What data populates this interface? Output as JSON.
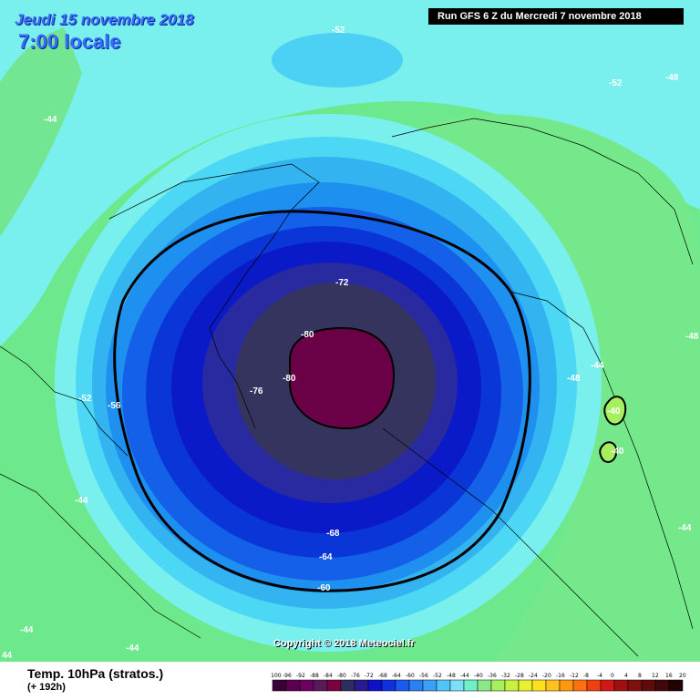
{
  "header": {
    "date": "Jeudi 15 novembre 2018",
    "time": "7:00 locale",
    "run": "Run GFS 6 Z du Mercredi 7 novembre 2018"
  },
  "copyright": "Copyright © 2018 Meteociel.fr",
  "footer": {
    "title": "Temp. 10hPa (stratos.)",
    "forecast": "(+ 192h)"
  },
  "legend": {
    "labels": [
      "-100",
      "-96",
      "-92",
      "-88",
      "-84",
      "-80",
      "-76",
      "-72",
      "-68",
      "-64",
      "-60",
      "-56",
      "-52",
      "-48",
      "-44",
      "-40",
      "-36",
      "-32",
      "-28",
      "-24",
      "-20",
      "-16",
      "-12",
      "-8",
      "-4",
      "0",
      "4",
      "8",
      "12",
      "16",
      "20"
    ],
    "colors": [
      "#3a0035",
      "#5a004f",
      "#6e0063",
      "#5a1a5a",
      "#7a0040",
      "#2e2e5e",
      "#2a1a90",
      "#1010c8",
      "#1030e0",
      "#1a5af0",
      "#2a80f5",
      "#3aa0f8",
      "#50c6f8",
      "#7ae0f8",
      "#70f0c8",
      "#8ae888",
      "#a6f060",
      "#c8f040",
      "#e8f030",
      "#ffe020",
      "#ffc020",
      "#ff9810",
      "#ff7010",
      "#f04010",
      "#d01818",
      "#a01010",
      "#801010",
      "#600a0a",
      "#400808",
      "#200404"
    ]
  },
  "contour_labels": [
    "-52",
    "-52",
    "-48",
    "-44",
    "-48",
    "-44",
    "-48",
    "-40",
    "-40",
    "-44",
    "-72",
    "-80",
    "-80",
    "-76",
    "-52",
    "-56",
    "-44",
    "-68",
    "-64",
    "-60",
    "-44",
    "-44",
    "44"
  ],
  "colors": {
    "outer_green": "#6ee88c",
    "cyan_light": "#7af0ee",
    "cyan": "#4cd8f4",
    "sky": "#33b4f0",
    "blue1": "#1e90f0",
    "blue2": "#1460e8",
    "blue3": "#0a36d8",
    "blue4": "#0a1ac8",
    "indigo": "#2a2aa0",
    "slate": "#34345e",
    "core": "#6a0046"
  }
}
